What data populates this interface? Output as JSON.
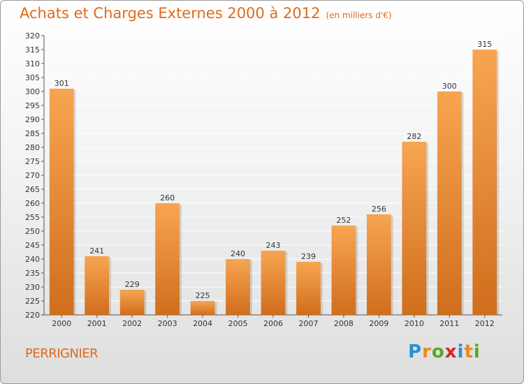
{
  "header": {
    "title": "Achats et Charges Externes 2000 à 2012",
    "unit": "(en milliers d'€)"
  },
  "footer": {
    "place": "PERRIGNIER"
  },
  "logo": {
    "letters": [
      "P",
      "r",
      "o",
      "x",
      "i",
      "t",
      "i"
    ],
    "colors": [
      "#2a8fd4",
      "#e98a1b",
      "#55aa22",
      "#d6262b",
      "#2a8fd4",
      "#e98a1b",
      "#55aa22"
    ]
  },
  "chart_data": {
    "type": "bar",
    "categories": [
      "2000",
      "2001",
      "2002",
      "2003",
      "2004",
      "2005",
      "2006",
      "2007",
      "2008",
      "2009",
      "2010",
      "2011",
      "2012"
    ],
    "values": [
      301,
      241,
      229,
      260,
      225,
      240,
      243,
      239,
      252,
      256,
      282,
      300,
      315
    ],
    "title": "Achats et Charges Externes 2000 à 2012",
    "ylim": [
      220,
      320
    ],
    "yticks": [
      220,
      225,
      230,
      235,
      240,
      245,
      250,
      255,
      260,
      265,
      270,
      275,
      280,
      285,
      290,
      295,
      300,
      305,
      310,
      315,
      320
    ],
    "grid": true,
    "colors": {
      "bar_top": "#f7a552",
      "bar_bottom": "#d06e1c",
      "grid": "#ffffff"
    }
  }
}
